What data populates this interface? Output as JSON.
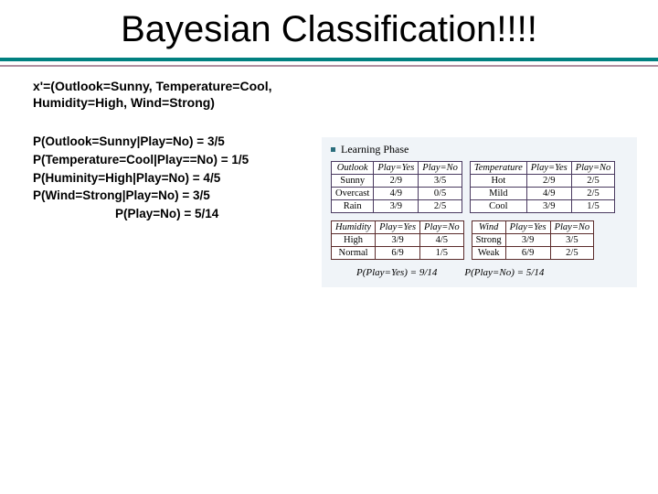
{
  "title": "Bayesian Classification!!!!",
  "example": {
    "line1": "x'=(Outlook=Sunny, Temperature=Cool,",
    "line2": "Humidity=High, Wind=Strong)"
  },
  "probs": {
    "p1": "P(Outlook=Sunny|Play=No) = 3/5",
    "p2": "P(Temperature=Cool|Play==No) = 1/5",
    "p3": "P(Huminity=High|Play=No) = 4/5",
    "p4": "P(Wind=Strong|Play=No) = 3/5",
    "p5": "P(Play=No) = 5/14"
  },
  "learning_label": "Learning Phase",
  "tables": {
    "outlook": {
      "cols": [
        "Outlook",
        "Play=Yes",
        "Play=No"
      ],
      "rows": [
        [
          "Sunny",
          "2/9",
          "3/5"
        ],
        [
          "Overcast",
          "4/9",
          "0/5"
        ],
        [
          "Rain",
          "3/9",
          "2/5"
        ]
      ]
    },
    "temperature": {
      "cols": [
        "Temperature",
        "Play=Yes",
        "Play=No"
      ],
      "rows": [
        [
          "Hot",
          "2/9",
          "2/5"
        ],
        [
          "Mild",
          "4/9",
          "2/5"
        ],
        [
          "Cool",
          "3/9",
          "1/5"
        ]
      ]
    },
    "humidity": {
      "cols": [
        "Humidity",
        "Play=Yes",
        "Play=No"
      ],
      "rows": [
        [
          "High",
          "3/9",
          "4/5"
        ],
        [
          "Normal",
          "6/9",
          "1/5"
        ]
      ]
    },
    "wind": {
      "cols": [
        "Wind",
        "Play=Yes",
        "Play=No"
      ],
      "rows": [
        [
          "Strong",
          "3/9",
          "3/5"
        ],
        [
          "Weak",
          "6/9",
          "2/5"
        ]
      ]
    }
  },
  "priors": {
    "yes": "P(Play=Yes) = 9/14",
    "no": "P(Play=No) = 5/14"
  },
  "colors": {
    "divider_main": "#008080",
    "divider_sub": "#b090a0",
    "table_bg": "#f0f4f8",
    "border_top_tables": "#4a3a60",
    "border_bottom_tables": "#5b2b2b",
    "bullet": "#2a6d7c"
  }
}
